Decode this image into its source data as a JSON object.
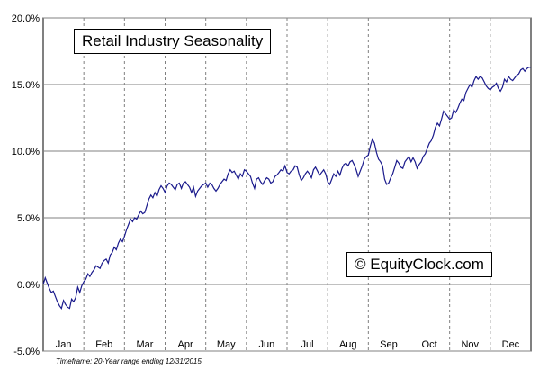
{
  "chart_data": {
    "type": "line",
    "title": "Retail Industry Seasonality",
    "xlabel": "",
    "ylabel": "",
    "categories": [
      "Jan",
      "Feb",
      "Mar",
      "Apr",
      "May",
      "Jun",
      "Jul",
      "Aug",
      "Sep",
      "Oct",
      "Nov",
      "Dec"
    ],
    "ylim": [
      -5.0,
      20.0
    ],
    "y_ticks": [
      "-5.0%",
      "0.0%",
      "5.0%",
      "10.0%",
      "15.0%",
      "20.0%"
    ],
    "y_tick_values": [
      -5,
      0,
      5,
      10,
      15,
      20
    ],
    "grid": "horizontal-solid, vertical-dashed",
    "series": [
      {
        "name": "",
        "color": "#1a1a8c",
        "x": [
          0.0,
          0.05,
          0.1,
          0.15,
          0.2,
          0.25,
          0.3,
          0.35,
          0.4,
          0.45,
          0.5,
          0.55,
          0.6,
          0.65,
          0.7,
          0.75,
          0.8,
          0.85,
          0.9,
          0.95,
          1.0,
          1.05,
          1.1,
          1.15,
          1.2,
          1.25,
          1.3,
          1.35,
          1.4,
          1.45,
          1.5,
          1.55,
          1.6,
          1.65,
          1.7,
          1.75,
          1.8,
          1.85,
          1.9,
          1.95,
          2.0,
          2.05,
          2.1,
          2.15,
          2.2,
          2.25,
          2.3,
          2.35,
          2.4,
          2.45,
          2.5,
          2.55,
          2.6,
          2.65,
          2.7,
          2.75,
          2.8,
          2.85,
          2.9,
          2.95,
          3.0,
          3.05,
          3.1,
          3.15,
          3.2,
          3.25,
          3.3,
          3.35,
          3.4,
          3.45,
          3.5,
          3.55,
          3.6,
          3.65,
          3.7,
          3.75,
          3.8,
          3.85,
          3.9,
          3.95,
          4.0,
          4.05,
          4.1,
          4.15,
          4.2,
          4.25,
          4.3,
          4.35,
          4.4,
          4.45,
          4.5,
          4.55,
          4.6,
          4.65,
          4.7,
          4.75,
          4.8,
          4.85,
          4.9,
          4.95,
          5.0,
          5.05,
          5.1,
          5.15,
          5.2,
          5.25,
          5.3,
          5.35,
          5.4,
          5.45,
          5.5,
          5.55,
          5.6,
          5.65,
          5.7,
          5.75,
          5.8,
          5.85,
          5.9,
          5.95,
          6.0,
          6.05,
          6.1,
          6.15,
          6.2,
          6.25,
          6.3,
          6.35,
          6.4,
          6.45,
          6.5,
          6.55,
          6.6,
          6.65,
          6.7,
          6.75,
          6.8,
          6.85,
          6.9,
          6.95,
          7.0,
          7.05,
          7.1,
          7.15,
          7.2,
          7.25,
          7.3,
          7.35,
          7.4,
          7.45,
          7.5,
          7.55,
          7.6,
          7.65,
          7.7,
          7.75,
          7.8,
          7.85,
          7.9,
          7.95,
          8.0,
          8.05,
          8.1,
          8.15,
          8.2,
          8.25,
          8.3,
          8.35,
          8.4,
          8.45,
          8.5,
          8.55,
          8.6,
          8.65,
          8.7,
          8.75,
          8.8,
          8.85,
          8.9,
          8.95,
          9.0,
          9.05,
          9.1,
          9.15,
          9.2,
          9.25,
          9.3,
          9.35,
          9.4,
          9.45,
          9.5,
          9.55,
          9.6,
          9.65,
          9.7,
          9.75,
          9.8,
          9.85,
          9.9,
          9.95,
          10.0,
          10.05,
          10.1,
          10.15,
          10.2,
          10.25,
          10.3,
          10.35,
          10.4,
          10.45,
          10.5,
          10.55,
          10.6,
          10.65,
          10.7,
          10.75,
          10.8,
          10.85,
          10.9,
          10.95,
          11.0,
          11.05,
          11.1,
          11.15,
          11.2,
          11.25,
          11.3,
          11.35,
          11.4,
          11.45,
          11.5,
          11.55,
          11.6,
          11.65,
          11.7,
          11.75,
          11.8,
          11.85,
          11.9,
          11.95,
          12.0
        ],
        "values": [
          0.0,
          0.5,
          0.1,
          -0.3,
          -0.6,
          -0.5,
          -0.9,
          -1.3,
          -1.6,
          -1.8,
          -1.2,
          -1.5,
          -1.7,
          -1.8,
          -1.1,
          -1.3,
          -1.0,
          -0.2,
          -0.6,
          -0.1,
          0.2,
          0.4,
          0.8,
          0.6,
          0.9,
          1.1,
          1.4,
          1.3,
          1.2,
          1.6,
          1.8,
          1.9,
          1.6,
          2.2,
          2.4,
          2.8,
          2.6,
          3.1,
          3.4,
          3.2,
          3.6,
          4.1,
          4.5,
          4.9,
          4.7,
          5.0,
          4.9,
          5.2,
          5.5,
          5.3,
          5.4,
          5.9,
          6.4,
          6.7,
          6.5,
          6.9,
          6.6,
          7.1,
          7.4,
          7.2,
          6.9,
          7.4,
          7.6,
          7.5,
          7.3,
          7.1,
          7.5,
          7.6,
          7.2,
          7.6,
          7.7,
          7.5,
          7.3,
          6.9,
          7.3,
          6.6,
          7.0,
          7.2,
          7.4,
          7.5,
          7.6,
          7.3,
          7.6,
          7.5,
          7.2,
          7.0,
          7.2,
          7.5,
          7.7,
          7.9,
          7.8,
          8.3,
          8.6,
          8.4,
          8.5,
          8.2,
          7.9,
          8.3,
          8.1,
          8.6,
          8.5,
          8.3,
          8.1,
          7.6,
          7.2,
          7.9,
          8.0,
          7.7,
          7.5,
          7.8,
          8.0,
          7.9,
          7.6,
          7.7,
          8.1,
          8.2,
          8.4,
          8.6,
          8.5,
          8.9,
          8.4,
          8.3,
          8.5,
          8.6,
          8.9,
          8.8,
          8.2,
          7.8,
          8.0,
          8.3,
          8.5,
          8.3,
          8.0,
          8.6,
          8.8,
          8.5,
          8.2,
          8.4,
          8.6,
          8.3,
          7.7,
          7.5,
          7.9,
          8.3,
          8.1,
          8.5,
          8.2,
          8.7,
          9.0,
          9.1,
          8.9,
          9.2,
          9.3,
          9.0,
          8.6,
          8.1,
          8.5,
          8.9,
          9.4,
          9.6,
          9.7,
          10.4,
          10.9,
          10.6,
          9.9,
          9.4,
          9.2,
          8.9,
          7.9,
          7.5,
          7.6,
          8.0,
          8.3,
          8.8,
          9.3,
          9.1,
          8.8,
          8.7,
          9.2,
          9.4,
          9.6,
          9.2,
          9.5,
          9.2,
          8.7,
          9.0,
          9.2,
          9.6,
          9.8,
          10.2,
          10.6,
          10.8,
          11.2,
          11.8,
          12.1,
          11.9,
          12.4,
          13.0,
          12.8,
          12.6,
          12.4,
          12.5,
          13.1,
          12.9,
          13.2,
          13.6,
          13.9,
          13.8,
          14.4,
          14.7,
          15.0,
          14.8,
          15.3,
          15.6,
          15.4,
          15.6,
          15.5,
          15.2,
          14.9,
          14.7,
          14.6,
          14.8,
          14.9,
          15.1,
          14.7,
          14.5,
          14.8,
          15.4,
          15.2,
          15.6,
          15.4,
          15.3,
          15.5,
          15.7,
          15.8,
          16.1,
          16.2,
          16.0,
          16.2,
          16.3,
          16.3
        ]
      }
    ]
  },
  "watermark": {
    "symbol": "©",
    "text": "EquityClock.com"
  },
  "footnote": "Timeframe: 20-Year range ending 12/31/2015"
}
